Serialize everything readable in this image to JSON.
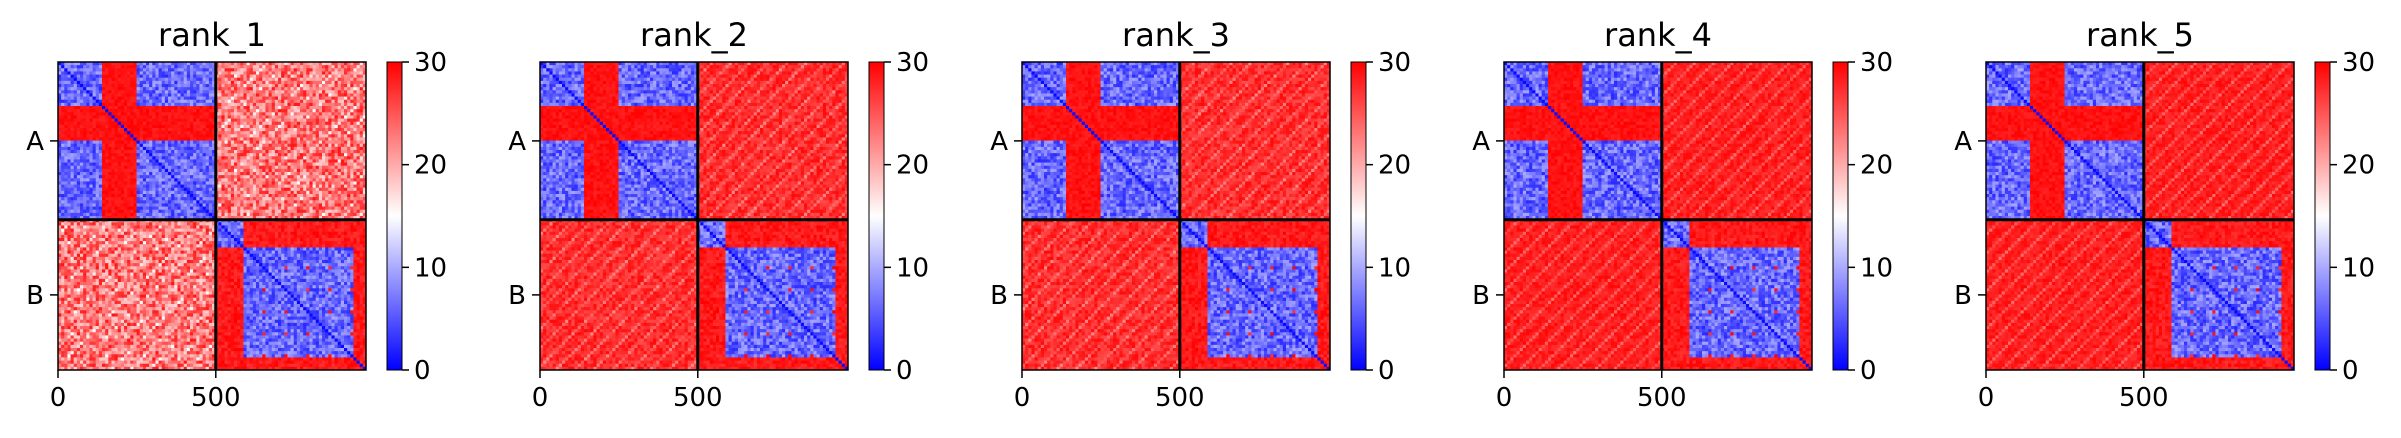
{
  "figure": {
    "background": "#ffffff",
    "colormap": {
      "name": "bwr",
      "low": "#0000ff",
      "mid": "#ffffff",
      "high": "#ff0000"
    }
  },
  "chart_data": [
    {
      "type": "heatmap",
      "title": "rank_1",
      "x_ticks": [
        0,
        500
      ],
      "x_tick_labels": [
        "0",
        "500"
      ],
      "xlim": [
        0,
        976
      ],
      "ylim": [
        0,
        976
      ],
      "chain_boundary": 500,
      "chain_labels": [
        "A",
        "B"
      ],
      "colorbar": {
        "min": 0,
        "max": 30,
        "ticks": [
          0,
          10,
          20,
          30
        ],
        "tick_labels": [
          "0",
          "10",
          "20",
          "30"
        ]
      },
      "grid": false,
      "inter_chain_level": 0.6
    },
    {
      "type": "heatmap",
      "title": "rank_2",
      "x_ticks": [
        0,
        500
      ],
      "x_tick_labels": [
        "0",
        "500"
      ],
      "xlim": [
        0,
        976
      ],
      "ylim": [
        0,
        976
      ],
      "chain_boundary": 500,
      "chain_labels": [
        "A",
        "B"
      ],
      "colorbar": {
        "min": 0,
        "max": 30,
        "ticks": [
          0,
          10,
          20,
          30
        ],
        "tick_labels": [
          "0",
          "10",
          "20",
          "30"
        ]
      },
      "grid": false,
      "inter_chain_level": 0.85
    },
    {
      "type": "heatmap",
      "title": "rank_3",
      "x_ticks": [
        0,
        500
      ],
      "x_tick_labels": [
        "0",
        "500"
      ],
      "xlim": [
        0,
        976
      ],
      "ylim": [
        0,
        976
      ],
      "chain_boundary": 500,
      "chain_labels": [
        "A",
        "B"
      ],
      "colorbar": {
        "min": 0,
        "max": 30,
        "ticks": [
          0,
          10,
          20,
          30
        ],
        "tick_labels": [
          "0",
          "10",
          "20",
          "30"
        ]
      },
      "grid": false,
      "inter_chain_level": 0.85
    },
    {
      "type": "heatmap",
      "title": "rank_4",
      "x_ticks": [
        0,
        500
      ],
      "x_tick_labels": [
        "0",
        "500"
      ],
      "xlim": [
        0,
        976
      ],
      "ylim": [
        0,
        976
      ],
      "chain_boundary": 500,
      "chain_labels": [
        "A",
        "B"
      ],
      "colorbar": {
        "min": 0,
        "max": 30,
        "ticks": [
          0,
          10,
          20,
          30
        ],
        "tick_labels": [
          "0",
          "10",
          "20",
          "30"
        ]
      },
      "grid": false,
      "inter_chain_level": 0.9
    },
    {
      "type": "heatmap",
      "title": "rank_5",
      "x_ticks": [
        0,
        500
      ],
      "x_tick_labels": [
        "0",
        "500"
      ],
      "xlim": [
        0,
        976
      ],
      "ylim": [
        0,
        976
      ],
      "chain_boundary": 500,
      "chain_labels": [
        "A",
        "B"
      ],
      "colorbar": {
        "min": 0,
        "max": 30,
        "ticks": [
          0,
          10,
          20,
          30
        ],
        "tick_labels": [
          "0",
          "10",
          "20",
          "30"
        ]
      },
      "grid": false,
      "inter_chain_level": 0.9
    }
  ]
}
